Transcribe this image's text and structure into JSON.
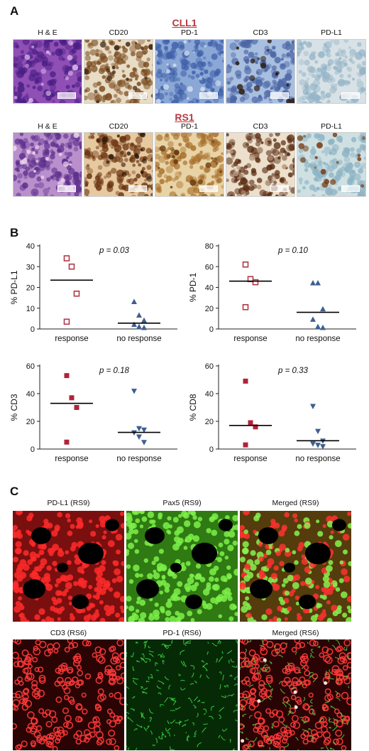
{
  "panel_a": {
    "letter": "A",
    "rows": [
      {
        "title": "CLL1",
        "labels": [
          "H & E",
          "CD20",
          "PD-1",
          "CD3",
          "PD-L1"
        ]
      },
      {
        "title": "RS1",
        "labels": [
          "H & E",
          "CD20",
          "PD-1",
          "CD3",
          "PD-L1"
        ]
      }
    ]
  },
  "panel_b": {
    "letter": "B",
    "plots": [
      {
        "pvalue": "p = 0.03",
        "ylabel": "% PD-L1"
      },
      {
        "pvalue": "p = 0.10",
        "ylabel": "% PD-1"
      },
      {
        "pvalue": "p = 0.18",
        "ylabel": "% CD3"
      },
      {
        "pvalue": "p = 0.33",
        "ylabel": "% CD8"
      }
    ]
  },
  "panel_c": {
    "letter": "C",
    "labels": [
      "PD-L1 (RS9)",
      "Pax5 (RS9)",
      "Merged (RS9)",
      "CD3 (RS6)",
      "PD-1 (RS6)",
      "Merged (RS6)"
    ]
  },
  "chart_data": [
    {
      "type": "scatter",
      "ylabel": "% PD-L1",
      "categories": [
        "response",
        "no response"
      ],
      "ylim": [
        0,
        40
      ],
      "yticks": [
        0,
        10,
        20,
        30,
        40
      ],
      "pvalue": "p = 0.03",
      "series": [
        {
          "category": "response",
          "marker": "open-square",
          "values": [
            34,
            30,
            17,
            3.5
          ]
        },
        {
          "category": "no response",
          "marker": "triangle-up",
          "values": [
            13,
            6.5,
            4,
            2,
            1,
            0.5
          ]
        }
      ],
      "medians": [
        23.5,
        2.8
      ]
    },
    {
      "type": "scatter",
      "ylabel": "% PD-1",
      "categories": [
        "response",
        "no response"
      ],
      "ylim": [
        0,
        80
      ],
      "yticks": [
        0,
        20,
        40,
        60,
        80
      ],
      "pvalue": "p = 0.10",
      "series": [
        {
          "category": "response",
          "marker": "open-square",
          "values": [
            62,
            48,
            45,
            21
          ]
        },
        {
          "category": "no response",
          "marker": "triangle-up",
          "values": [
            44,
            44,
            19,
            9,
            2,
            1
          ]
        }
      ],
      "medians": [
        46,
        16
      ]
    },
    {
      "type": "scatter",
      "ylabel": "% CD3",
      "categories": [
        "response",
        "no response"
      ],
      "ylim": [
        0,
        60
      ],
      "yticks": [
        0,
        20,
        40,
        60
      ],
      "pvalue": "p = 0.18",
      "series": [
        {
          "category": "response",
          "marker": "filled-square",
          "values": [
            53,
            37,
            30,
            5
          ]
        },
        {
          "category": "no response",
          "marker": "triangle-down",
          "values": [
            42,
            15,
            14,
            12,
            9,
            5
          ]
        }
      ],
      "medians": [
        33,
        12
      ]
    },
    {
      "type": "scatter",
      "ylabel": "% CD8",
      "categories": [
        "response",
        "no response"
      ],
      "ylim": [
        0,
        60
      ],
      "yticks": [
        0,
        20,
        40,
        60
      ],
      "pvalue": "p = 0.33",
      "series": [
        {
          "category": "response",
          "marker": "filled-square",
          "values": [
            49,
            19,
            16,
            3
          ]
        },
        {
          "category": "no response",
          "marker": "triangle-down",
          "values": [
            31,
            13,
            6,
            4,
            3,
            2
          ]
        }
      ],
      "medians": [
        17,
        6
      ]
    }
  ]
}
